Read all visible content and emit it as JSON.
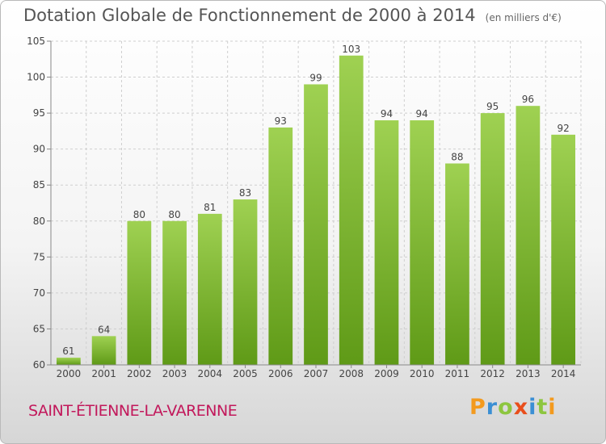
{
  "header": {
    "title": "Dotation Globale de Fonctionnement de 2000 à 2014",
    "subtitle": "(en milliers d'€)"
  },
  "footer": {
    "commune": "SAINT-ÉTIENNE-LA-VARENNE",
    "logo_letters": [
      "P",
      "r",
      "o",
      "x",
      "i",
      "t",
      "i"
    ]
  },
  "chart_data": {
    "type": "bar",
    "title": "Dotation Globale de Fonctionnement de 2000 à 2014",
    "subtitle": "(en milliers d'€)",
    "categories": [
      "2000",
      "2001",
      "2002",
      "2003",
      "2004",
      "2005",
      "2006",
      "2007",
      "2008",
      "2009",
      "2010",
      "2011",
      "2012",
      "2013",
      "2014"
    ],
    "values": [
      61,
      64,
      80,
      80,
      81,
      83,
      93,
      99,
      103,
      94,
      94,
      88,
      95,
      96,
      92
    ],
    "ylim": [
      60,
      105
    ],
    "yticks": [
      60,
      65,
      70,
      75,
      80,
      85,
      90,
      95,
      100,
      105
    ],
    "grid": true,
    "bar_color_top": "#9fd152",
    "bar_color_bottom": "#5f9a17"
  }
}
